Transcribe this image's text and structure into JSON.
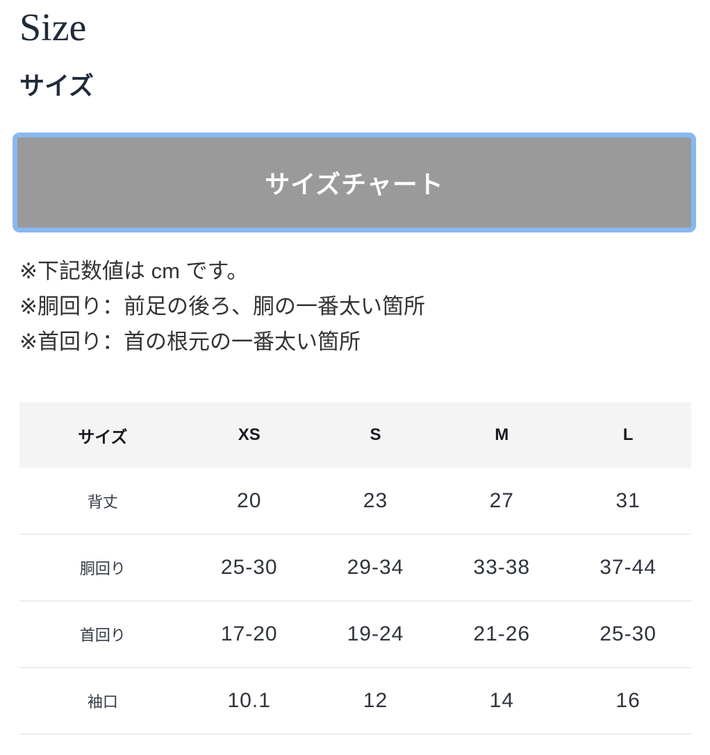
{
  "section": {
    "title_en": "Size",
    "title_ja": "サイズ"
  },
  "size_chart_button": {
    "label": "サイズチャート"
  },
  "notes": [
    "※下記数値は cm です。",
    "※胴回り：前足の後ろ、胴の一番太い箇所",
    "※首回り：首の根元の一番太い箇所"
  ],
  "size_table": {
    "unit": "cm",
    "columns": [
      "サイズ",
      "XS",
      "S",
      "M",
      "L"
    ],
    "rows": [
      {
        "label": "背丈",
        "values": [
          "20",
          "23",
          "27",
          "31"
        ]
      },
      {
        "label": "胴回り",
        "values": [
          "25-30",
          "29-34",
          "33-38",
          "37-44"
        ]
      },
      {
        "label": "首回り",
        "values": [
          "17-20",
          "19-24",
          "21-26",
          "25-30"
        ]
      },
      {
        "label": "袖口",
        "values": [
          "10.1",
          "12",
          "14",
          "16"
        ]
      }
    ]
  },
  "colors": {
    "heading_text": "#202b39",
    "button_background": "#9a9a9b",
    "button_border": "#89b8f1",
    "button_text": "#ffffff",
    "table_header_background": "#f4f4f5",
    "row_border": "#ececec",
    "note_text": "#333333"
  }
}
